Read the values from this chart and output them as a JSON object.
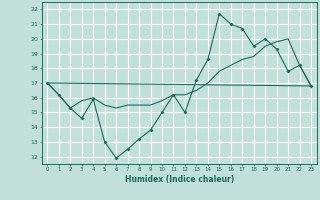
{
  "xlabel": "Humidex (Indice chaleur)",
  "bg_color": "#c2e0da",
  "grid_color": "#ffffff",
  "line_color": "#1a6b5a",
  "xlim": [
    -0.5,
    23.5
  ],
  "ylim": [
    11.5,
    22.5
  ],
  "xticks": [
    0,
    1,
    2,
    3,
    4,
    5,
    6,
    7,
    8,
    9,
    10,
    11,
    12,
    13,
    14,
    15,
    16,
    17,
    18,
    19,
    20,
    21,
    22,
    23
  ],
  "yticks": [
    12,
    13,
    14,
    15,
    16,
    17,
    18,
    19,
    20,
    21,
    22
  ],
  "line1_x": [
    0,
    1,
    2,
    3,
    4,
    5,
    6,
    7,
    8,
    9,
    10,
    11,
    12,
    13,
    14,
    15,
    16,
    17,
    18,
    19,
    20,
    21,
    22,
    23
  ],
  "line1_y": [
    17.0,
    16.2,
    15.3,
    14.6,
    15.9,
    13.0,
    11.9,
    12.5,
    13.2,
    13.8,
    15.0,
    16.2,
    15.0,
    17.2,
    18.6,
    21.7,
    21.0,
    20.7,
    19.5,
    20.0,
    19.3,
    17.8,
    18.2,
    16.8
  ],
  "line2_x": [
    0,
    1,
    2,
    3,
    4,
    5,
    6,
    7,
    8,
    9,
    10,
    11,
    12,
    13,
    14,
    15,
    16,
    17,
    18,
    19,
    20,
    21,
    22,
    23
  ],
  "line2_y": [
    17.0,
    16.2,
    15.3,
    15.8,
    16.0,
    15.5,
    15.3,
    15.5,
    15.5,
    15.5,
    15.8,
    16.2,
    16.2,
    16.5,
    17.0,
    17.8,
    18.2,
    18.6,
    18.8,
    19.5,
    19.8,
    20.0,
    18.2,
    16.8
  ],
  "line3_x": [
    0,
    23
  ],
  "line3_y": [
    17.0,
    16.8
  ]
}
